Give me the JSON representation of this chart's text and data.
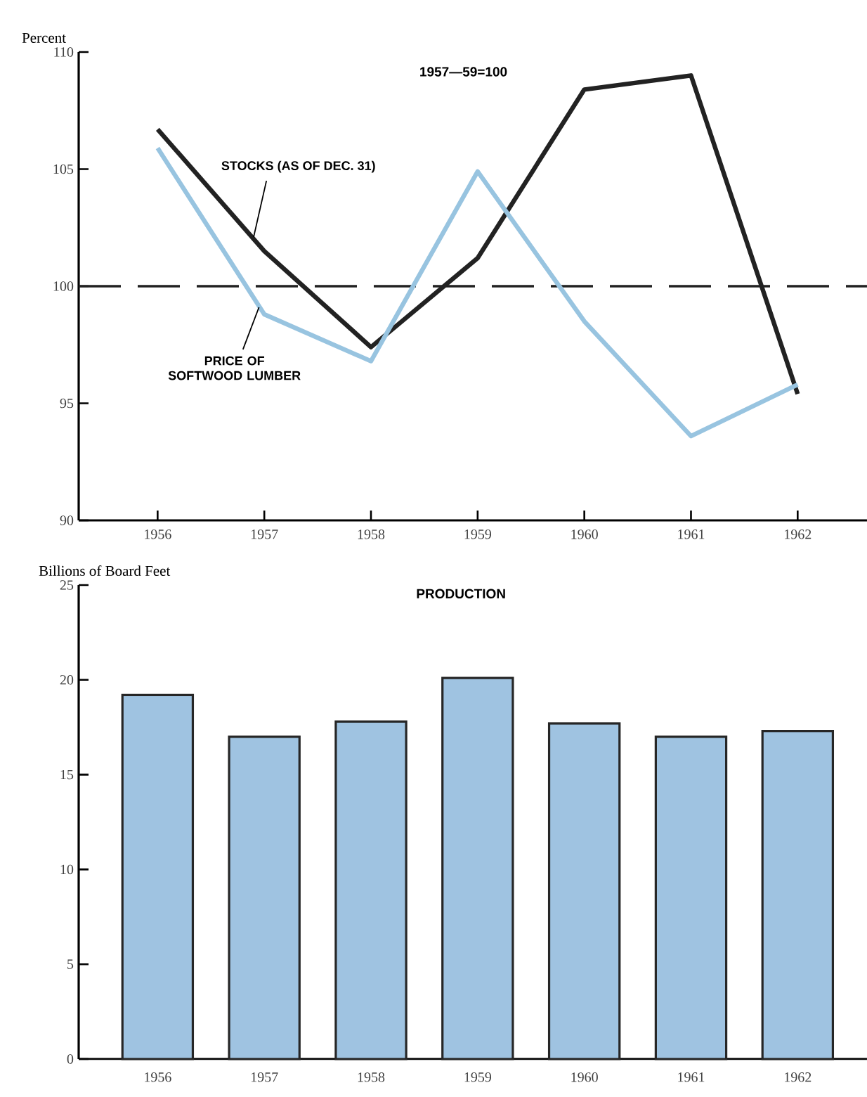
{
  "chart_data": [
    {
      "type": "line",
      "ylabel": "Percent",
      "categories": [
        "1956",
        "1957",
        "1958",
        "1959",
        "1960",
        "1961",
        "1962"
      ],
      "ylim": [
        90,
        110
      ],
      "yticks": [
        90,
        95,
        100,
        105,
        110
      ],
      "annotations": [
        "1957—59=100"
      ],
      "ref_lines": [
        {
          "axis": "y",
          "value": 100,
          "line_style": "dashed",
          "color": "#222222"
        }
      ],
      "series": [
        {
          "name": "STOCKS (AS OF DEC. 31)",
          "color": "#222222",
          "values": [
            106.7,
            101.5,
            97.4,
            101.2,
            108.4,
            109.0,
            95.4
          ]
        },
        {
          "name": "PRICE OF SOFTWOOD LUMBER",
          "color": "#98c4e0",
          "values": [
            105.9,
            98.8,
            96.8,
            104.9,
            98.5,
            93.6,
            95.8
          ]
        }
      ]
    },
    {
      "type": "bar",
      "title": "PRODUCTION",
      "ylabel": "Billions of Board Feet",
      "categories": [
        "1956",
        "1957",
        "1958",
        "1959",
        "1960",
        "1961",
        "1962"
      ],
      "ylim": [
        0,
        25
      ],
      "yticks": [
        0,
        5,
        10,
        15,
        20,
        25
      ],
      "color": "#9fc3e1",
      "values": [
        19.2,
        17.0,
        17.8,
        20.1,
        17.7,
        17.0,
        17.3
      ]
    }
  ]
}
